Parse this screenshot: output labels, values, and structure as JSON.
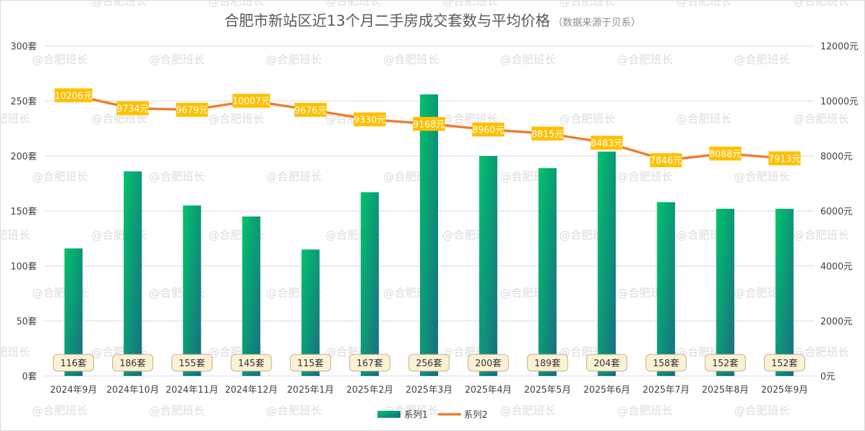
{
  "chart_data": {
    "type": "bar+line",
    "title": "合肥市新站区近13个月二手房成交套数与平均价格",
    "subtitle": "（数据来源于贝系）",
    "watermark": "@合肥班长",
    "categories": [
      "2024年9月",
      "2024年10月",
      "2024年11月",
      "2024年12月",
      "2025年1月",
      "2025年2月",
      "2025年3月",
      "2025年4月",
      "2025年5月",
      "2025年6月",
      "2025年7月",
      "2025年8月",
      "2025年9月"
    ],
    "series": [
      {
        "name": "系列1",
        "type": "bar",
        "axis": "left",
        "unit": "套",
        "values": [
          116,
          186,
          155,
          145,
          115,
          167,
          256,
          200,
          189,
          204,
          158,
          152,
          152
        ]
      },
      {
        "name": "系列2",
        "type": "line",
        "axis": "right",
        "unit": "元",
        "values": [
          10206,
          9734,
          9679,
          10007,
          9676,
          9330,
          9168,
          8960,
          8815,
          8483,
          7846,
          8088,
          7913
        ]
      }
    ],
    "y_left": {
      "min": 0,
      "max": 300,
      "ticks": [
        0,
        50,
        100,
        150,
        200,
        250,
        300
      ],
      "unit": "套"
    },
    "y_right": {
      "min": 0,
      "max": 12000,
      "ticks": [
        0,
        2000,
        4000,
        6000,
        8000,
        10000,
        12000
      ],
      "unit": "元"
    },
    "grid": true,
    "legend_position": "bottom",
    "colors": {
      "bar_top": "#00C46A",
      "bar_bottom": "#1A6A85",
      "line": "#ED7D31",
      "price_label_bg": "#FFC000",
      "count_label_bg": "#FDF1D4",
      "count_label_border": "#B8AD8E",
      "title": "#595959",
      "subtitle": "#8C8C8C",
      "axis_text": "#404040",
      "grid": "#D9D9D9",
      "watermark": "#DCDCDC"
    }
  }
}
